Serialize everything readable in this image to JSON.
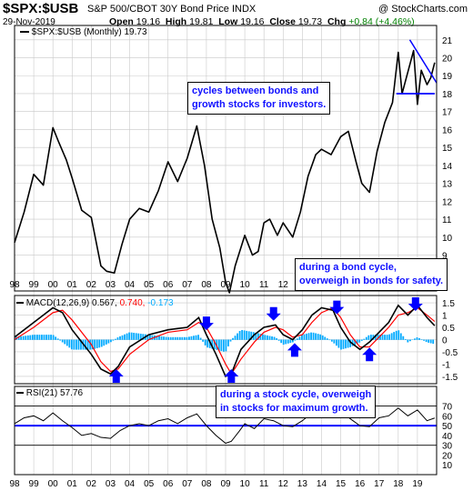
{
  "header": {
    "symbol": "$SPX:$USB",
    "description": "S&P 500/CBOT 30Y Bond Price INDX",
    "watermark": "@ StockCharts.com",
    "date": "29-Nov-2019",
    "open_label": "Open",
    "open": "19.16",
    "high_label": "High",
    "high": "19.81",
    "low_label": "Low",
    "low": "19.16",
    "close_label": "Close",
    "close": "19.73",
    "chg_label": "Chg",
    "chg": "+0.84 (+4.46%)"
  },
  "legend": {
    "price": "$SPX:$USB (Monthly) 19.73",
    "macd": "MACD(12,26,9)",
    "macd_v1": "0.567,",
    "macd_v2": "0.740,",
    "macd_v3": "-0.173",
    "rsi": "RSI(21) 57.76"
  },
  "annotations": {
    "a1_l1": "cycles between bonds and",
    "a1_l2": "growth stocks for investors.",
    "a2_l1": "during a bond cycle,",
    "a2_l2": "overweigh in bonds for safety.",
    "a3_l1": "during a stock cycle, overweigh",
    "a3_l2": "in stocks for maximum growth."
  },
  "colors": {
    "price": "#000000",
    "macd_line": "#000000",
    "signal_line": "#ff0000",
    "histogram": "#00aaff",
    "annotation": "#1010ff",
    "arrow": "#0000ff",
    "rsi": "#000000",
    "grid": "#c8c8c8"
  },
  "chart_data": {
    "type": "line",
    "x_tick_labels": [
      "98",
      "99",
      "00",
      "01",
      "02",
      "03",
      "04",
      "05",
      "06",
      "07",
      "08",
      "09",
      "10",
      "11",
      "12",
      "13",
      "14",
      "15",
      "16",
      "17",
      "18",
      "19"
    ],
    "x_bottom_tick_labels": [
      "98",
      "99",
      "00",
      "01",
      "02",
      "03",
      "04",
      "05",
      "06",
      "07",
      "08",
      "09",
      "10",
      "11",
      "12",
      "13",
      "14",
      "15",
      "16",
      "17",
      "18",
      "19"
    ],
    "price_panel": {
      "series": "$SPX:$USB (Monthly)",
      "y_ticks": [
        8,
        9,
        10,
        11,
        12,
        13,
        14,
        15,
        16,
        17,
        18,
        19,
        20,
        21
      ],
      "x": [
        1998.0,
        1998.5,
        1999.0,
        1999.5,
        2000.0,
        2000.3,
        2000.7,
        2001.0,
        2001.5,
        2002.0,
        2002.5,
        2002.8,
        2003.2,
        2003.6,
        2004.0,
        2004.5,
        2005.0,
        2005.5,
        2006.0,
        2006.5,
        2007.0,
        2007.5,
        2007.9,
        2008.3,
        2008.7,
        2009.0,
        2009.2,
        2009.5,
        2010.0,
        2010.4,
        2010.7,
        2011.0,
        2011.3,
        2011.7,
        2012.0,
        2012.5,
        2012.9,
        2013.3,
        2013.7,
        2014.0,
        2014.5,
        2015.0,
        2015.4,
        2015.8,
        2016.1,
        2016.5,
        2016.9,
        2017.3,
        2017.7,
        2018.0,
        2018.2,
        2018.5,
        2018.8,
        2019.0,
        2019.2,
        2019.5,
        2019.7,
        2019.9
      ],
      "y": [
        9.7,
        11.4,
        13.5,
        12.9,
        16.1,
        15.3,
        14.3,
        13.3,
        11.5,
        11.1,
        8.4,
        8.1,
        8.0,
        9.6,
        11.0,
        11.6,
        11.4,
        12.6,
        14.2,
        13.1,
        14.4,
        16.2,
        14.0,
        11.0,
        9.4,
        7.5,
        6.9,
        8.4,
        10.1,
        9.0,
        9.2,
        10.8,
        11.0,
        10.1,
        10.8,
        10.0,
        11.4,
        13.4,
        14.6,
        14.9,
        14.6,
        15.6,
        15.9,
        14.2,
        13.0,
        12.5,
        14.8,
        16.4,
        17.5,
        20.3,
        18.0,
        19.2,
        20.4,
        17.4,
        19.3,
        18.5,
        18.9,
        19.73
      ]
    },
    "macd_panel": {
      "y_ticks": [
        1.5,
        1.0,
        0.5,
        0.0,
        -0.5,
        -1.0,
        -1.5
      ],
      "x": [
        1998.0,
        1999.0,
        2000.0,
        2000.5,
        2001.0,
        2002.0,
        2002.5,
        2003.0,
        2003.4,
        2004.0,
        2005.0,
        2006.0,
        2007.0,
        2007.6,
        2008.0,
        2008.5,
        2009.0,
        2009.3,
        2009.8,
        2010.5,
        2011.0,
        2011.6,
        2012.0,
        2012.5,
        2013.0,
        2013.5,
        2014.0,
        2014.6,
        2015.0,
        2015.5,
        2016.0,
        2016.5,
        2017.0,
        2017.5,
        2018.0,
        2018.5,
        2019.0,
        2019.5,
        2019.9
      ],
      "macd": [
        0.1,
        0.7,
        1.3,
        1.1,
        0.4,
        -0.6,
        -1.2,
        -1.4,
        -1.1,
        -0.3,
        0.2,
        0.4,
        0.5,
        0.9,
        0.2,
        -0.6,
        -1.5,
        -1.4,
        -0.4,
        0.2,
        0.5,
        0.6,
        0.2,
        0.0,
        0.4,
        1.0,
        1.3,
        1.2,
        0.5,
        -0.1,
        -0.4,
        -0.1,
        0.3,
        0.7,
        1.4,
        1.0,
        1.4,
        0.9,
        0.567
      ],
      "signal": [
        0.0,
        0.5,
        1.1,
        1.2,
        0.8,
        -0.2,
        -0.9,
        -1.3,
        -1.2,
        -0.6,
        0.0,
        0.3,
        0.4,
        0.7,
        0.5,
        -0.2,
        -1.0,
        -1.4,
        -0.8,
        -0.1,
        0.3,
        0.5,
        0.4,
        0.1,
        0.2,
        0.7,
        1.1,
        1.3,
        0.9,
        0.2,
        -0.3,
        -0.3,
        0.1,
        0.5,
        1.0,
        1.1,
        1.3,
        1.0,
        0.74
      ],
      "arrows_down": [
        2008.0,
        2011.5,
        2014.8,
        2018.9
      ],
      "arrows_up": [
        2003.3,
        2009.3,
        2012.6,
        2016.5
      ]
    },
    "rsi_panel": {
      "y_ticks": [
        70,
        60,
        50,
        40,
        30,
        20,
        10
      ],
      "reference_lines": [
        70,
        50,
        30
      ],
      "highlighted_line": 50,
      "x": [
        1998.0,
        1998.5,
        1999.0,
        1999.5,
        2000.0,
        2000.5,
        2001.0,
        2001.5,
        2002.0,
        2002.5,
        2003.0,
        2003.5,
        2004.0,
        2004.5,
        2005.0,
        2005.5,
        2006.0,
        2006.5,
        2007.0,
        2007.5,
        2008.0,
        2008.5,
        2009.0,
        2009.3,
        2009.7,
        2010.0,
        2010.5,
        2011.0,
        2011.5,
        2012.0,
        2012.5,
        2013.0,
        2013.5,
        2014.0,
        2014.5,
        2015.0,
        2015.5,
        2016.0,
        2016.5,
        2017.0,
        2017.5,
        2018.0,
        2018.5,
        2019.0,
        2019.5,
        2019.9
      ],
      "values": [
        52,
        58,
        60,
        55,
        63,
        55,
        48,
        40,
        42,
        38,
        37,
        45,
        50,
        52,
        50,
        55,
        57,
        52,
        58,
        62,
        50,
        40,
        32,
        34,
        44,
        52,
        47,
        57,
        55,
        50,
        49,
        55,
        63,
        62,
        60,
        65,
        57,
        50,
        49,
        58,
        60,
        68,
        60,
        66,
        55,
        57.76
      ]
    }
  }
}
